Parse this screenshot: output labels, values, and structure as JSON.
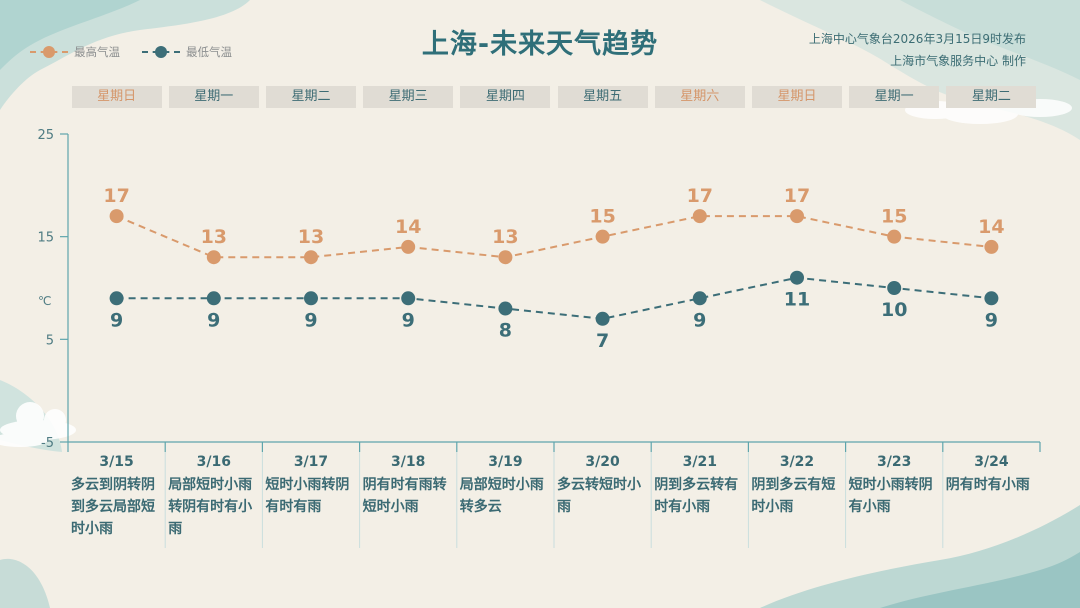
{
  "title": "上海-未来天气趋势",
  "source_line1": "上海中心气象台2026年3月15日9时发布",
  "source_line2": "上海市气象服务中心  制作",
  "legend": {
    "high": "最高气温",
    "low": "最低气温"
  },
  "colors": {
    "high": "#d99a6c",
    "low": "#3c6e78",
    "axis": "#5ea5ac",
    "weekend": "#d5966a"
  },
  "days": [
    {
      "label": "星期日",
      "weekend": true
    },
    {
      "label": "星期一",
      "weekend": false
    },
    {
      "label": "星期二",
      "weekend": false
    },
    {
      "label": "星期三",
      "weekend": false
    },
    {
      "label": "星期四",
      "weekend": false
    },
    {
      "label": "星期五",
      "weekend": false
    },
    {
      "label": "星期六",
      "weekend": true
    },
    {
      "label": "星期日",
      "weekend": true
    },
    {
      "label": "星期一",
      "weekend": false
    },
    {
      "label": "星期二",
      "weekend": false
    }
  ],
  "weather": [
    "多云到阴转阴到多云局部短时小雨",
    "局部短时小雨转阴有时有小雨",
    "短时小雨转阴有时有雨",
    "阴有时有雨转短时小雨",
    "局部短时小雨转多云",
    "多云转短时小雨",
    "阴到多云转有时有小雨",
    "阴到多云有短时小雨",
    "短时小雨转阴有小雨",
    "阴有时有小雨"
  ],
  "chart_data": {
    "type": "line",
    "categories": [
      "3/15",
      "3/16",
      "3/17",
      "3/18",
      "3/19",
      "3/20",
      "3/21",
      "3/22",
      "3/23",
      "3/24"
    ],
    "series": [
      {
        "name": "最高气温",
        "values": [
          17,
          13,
          13,
          14,
          13,
          15,
          17,
          17,
          15,
          14
        ]
      },
      {
        "name": "最低气温",
        "values": [
          9,
          9,
          9,
          9,
          8,
          7,
          9,
          11,
          10,
          9
        ]
      }
    ],
    "ylabel": "℃",
    "yticks": [
      25,
      15,
      5,
      -5
    ],
    "ylim": [
      -5,
      25
    ],
    "line_style": "dashed",
    "data_labels": true,
    "legend_position": "top-left"
  }
}
